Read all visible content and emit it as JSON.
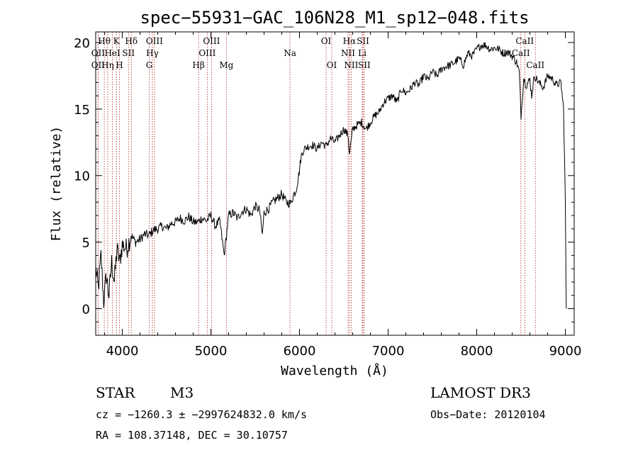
{
  "chart_data": {
    "type": "line",
    "title": "spec−55931−GAC_106N28_M1_sp12−048.fits",
    "xlabel": "Wavelength (Å)",
    "ylabel": "Flux (relative)",
    "xlim": [
      3700,
      9100
    ],
    "ylim": [
      -2,
      20.8
    ],
    "xticks": [
      4000,
      5000,
      6000,
      7000,
      8000,
      9000
    ],
    "yticks": [
      0,
      5,
      10,
      15,
      20
    ],
    "grid": false,
    "line_color": "#000000",
    "marker_color": "#b22222",
    "series": [
      {
        "name": "flux",
        "x": [
          3700,
          3730,
          3760,
          3790,
          3820,
          3850,
          3880,
          3910,
          3940,
          3970,
          4000,
          4050,
          4100,
          4150,
          4200,
          4250,
          4300,
          4350,
          4400,
          4450,
          4500,
          4550,
          4600,
          4650,
          4700,
          4750,
          4800,
          4850,
          4900,
          4950,
          5000,
          5050,
          5100,
          5150,
          5200,
          5250,
          5300,
          5350,
          5400,
          5450,
          5500,
          5550,
          5580,
          5600,
          5650,
          5700,
          5750,
          5800,
          5850,
          5900,
          5930,
          5960,
          5990,
          6020,
          6050,
          6100,
          6150,
          6200,
          6250,
          6300,
          6350,
          6400,
          6450,
          6500,
          6550,
          6563,
          6600,
          6650,
          6700,
          6750,
          6800,
          6850,
          6900,
          6950,
          7000,
          7050,
          7100,
          7150,
          7200,
          7250,
          7300,
          7350,
          7400,
          7450,
          7500,
          7550,
          7600,
          7650,
          7700,
          7750,
          7800,
          7850,
          7900,
          7950,
          8000,
          8050,
          8100,
          8150,
          8200,
          8250,
          8300,
          8350,
          8400,
          8450,
          8480,
          8500,
          8530,
          8560,
          8600,
          8620,
          8650,
          8700,
          8750,
          8800,
          8850,
          8900,
          8950,
          8980,
          9000,
          9010
        ],
        "y": [
          3.0,
          1.5,
          4.0,
          0.5,
          2.5,
          1.0,
          3.5,
          2.0,
          4.5,
          3.5,
          4.8,
          4.5,
          5.5,
          5.0,
          5.2,
          5.6,
          5.5,
          5.9,
          6.0,
          6.2,
          6.0,
          6.4,
          6.5,
          6.8,
          6.6,
          6.9,
          6.5,
          6.5,
          6.8,
          6.6,
          7.0,
          6.2,
          6.6,
          4.0,
          7.0,
          7.2,
          6.8,
          7.3,
          7.5,
          7.0,
          7.7,
          7.4,
          5.5,
          7.2,
          7.5,
          8.0,
          8.3,
          8.6,
          8.0,
          7.9,
          8.5,
          8.9,
          10.0,
          11.5,
          12.0,
          12.2,
          12.3,
          12.0,
          12.5,
          12.2,
          12.8,
          12.5,
          13.0,
          13.5,
          13.0,
          11.5,
          13.5,
          13.8,
          14.0,
          13.5,
          14.0,
          14.5,
          14.8,
          15.5,
          15.8,
          16.0,
          15.5,
          16.5,
          16.2,
          16.5,
          17.0,
          16.8,
          17.5,
          17.2,
          17.8,
          17.5,
          18.0,
          18.2,
          18.3,
          18.5,
          18.8,
          18.3,
          19.2,
          19.0,
          19.5,
          19.8,
          19.8,
          19.5,
          19.6,
          19.5,
          19.2,
          19.3,
          19.0,
          18.5,
          17.8,
          14.5,
          17.3,
          16.8,
          17.2,
          16.0,
          17.5,
          17.0,
          16.6,
          17.5,
          17.3,
          16.8,
          17.0,
          15.0,
          8.0,
          0.0
        ]
      }
    ],
    "line_markers": [
      {
        "label": "Hθ",
        "x": 3797,
        "row": 0
      },
      {
        "label": "OII",
        "x": 3727,
        "row": 1
      },
      {
        "label": "OII",
        "x": 3727,
        "row": 2
      },
      {
        "label": "K",
        "x": 3934,
        "row": 0
      },
      {
        "label": "H",
        "x": 3968,
        "row": 2
      },
      {
        "label": "HeI",
        "x": 3889,
        "row": 1
      },
      {
        "label": "Hη",
        "x": 3835,
        "row": 2
      },
      {
        "label": "SII",
        "x": 4070,
        "row": 1
      },
      {
        "label": "Hδ",
        "x": 4102,
        "row": 0
      },
      {
        "label": "OIII",
        "x": 4363,
        "row": 0
      },
      {
        "label": "Hγ",
        "x": 4340,
        "row": 1
      },
      {
        "label": "G",
        "x": 4304,
        "row": 2
      },
      {
        "label": "Hβ",
        "x": 4861,
        "row": 2
      },
      {
        "label": "OIII",
        "x": 5007,
        "row": 0
      },
      {
        "label": "OIII",
        "x": 4959,
        "row": 1
      },
      {
        "label": "Mg",
        "x": 5175,
        "row": 2
      },
      {
        "label": "Na",
        "x": 5893,
        "row": 1
      },
      {
        "label": "OI",
        "x": 6300,
        "row": 0
      },
      {
        "label": "OI",
        "x": 6364,
        "row": 2
      },
      {
        "label": "Hα",
        "x": 6563,
        "row": 0
      },
      {
        "label": "NII",
        "x": 6548,
        "row": 1
      },
      {
        "label": "NII",
        "x": 6583,
        "row": 2
      },
      {
        "label": "SII",
        "x": 6716,
        "row": 0
      },
      {
        "label": "Li",
        "x": 6708,
        "row": 1
      },
      {
        "label": "SII",
        "x": 6731,
        "row": 2
      },
      {
        "label": "CaII",
        "x": 8542,
        "row": 0
      },
      {
        "label": "CaII",
        "x": 8498,
        "row": 1
      },
      {
        "label": "CaII",
        "x": 8662,
        "row": 2
      }
    ]
  },
  "info": {
    "object_class": "STAR",
    "subclass": "M3",
    "survey": "LAMOST DR3",
    "velocity": "cz = −1260.3 ± −2997624832.0 km/s",
    "obs_date": "Obs−Date: 20120104",
    "coords": "RA = 108.37148, DEC =  30.10757"
  }
}
